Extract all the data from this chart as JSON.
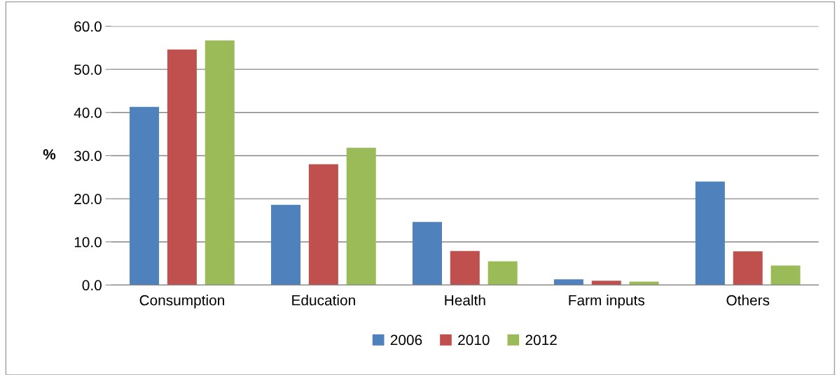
{
  "chart_data": {
    "type": "bar",
    "ylabel": "%",
    "categories": [
      "Consumption",
      "Education",
      "Health",
      "Farm inputs",
      "Others"
    ],
    "series": [
      {
        "name": "2006",
        "color": "#4f81bd",
        "values": [
          41.3,
          18.6,
          14.6,
          1.3,
          24.0
        ]
      },
      {
        "name": "2010",
        "color": "#c0504d",
        "values": [
          54.6,
          28.0,
          7.9,
          1.0,
          7.8
        ]
      },
      {
        "name": "2012",
        "color": "#9bbb59",
        "values": [
          56.7,
          31.8,
          5.5,
          0.8,
          4.5
        ]
      }
    ],
    "ylim": [
      0,
      60
    ],
    "yticks": [
      {
        "value": 0,
        "label": "0.0"
      },
      {
        "value": 10,
        "label": "10.0"
      },
      {
        "value": 20,
        "label": "20.0"
      },
      {
        "value": 30,
        "label": "30.0"
      },
      {
        "value": 40,
        "label": "40.0"
      },
      {
        "value": 50,
        "label": "50.0"
      },
      {
        "value": 60,
        "label": "60.0"
      }
    ],
    "grid": "y",
    "legend": "bottom"
  }
}
